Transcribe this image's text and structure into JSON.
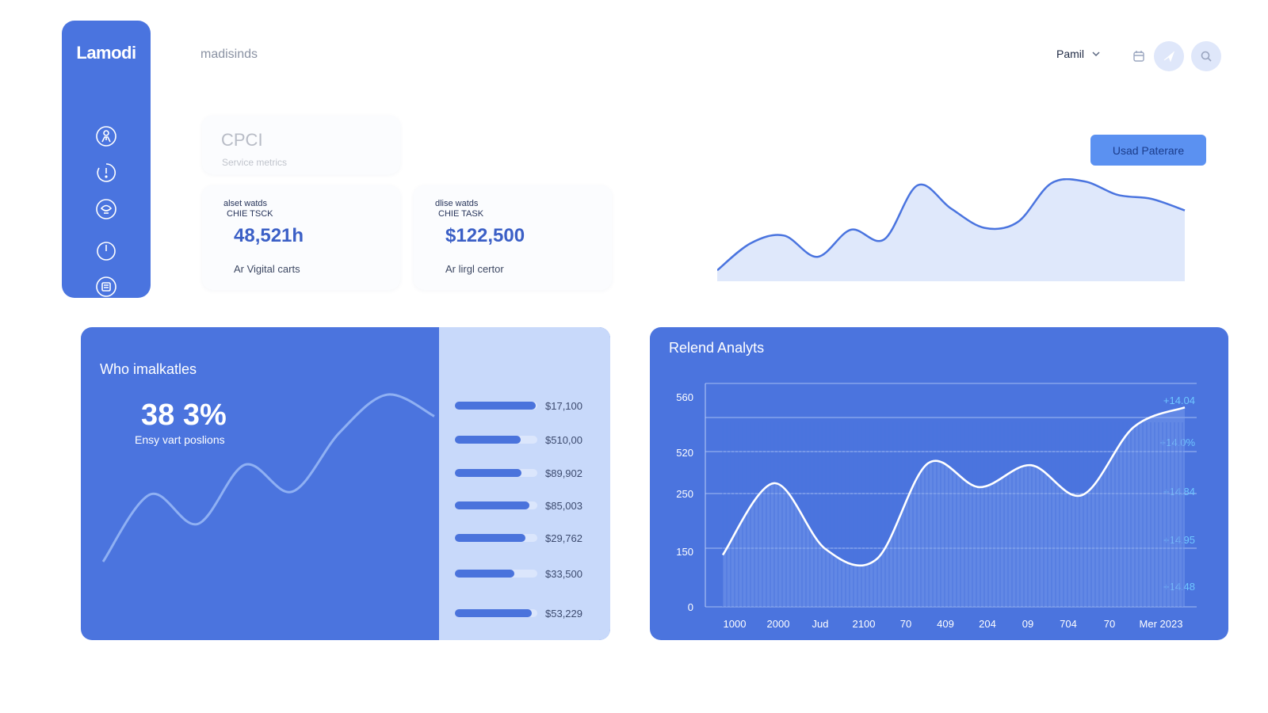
{
  "app": {
    "logo": "Lamodi",
    "breadcrumb": "madisinds"
  },
  "sidebar": {
    "items": [
      {
        "icon": "person-icon"
      },
      {
        "icon": "timer-icon"
      },
      {
        "icon": "chat-icon"
      },
      {
        "icon": "power-icon"
      },
      {
        "icon": "document-icon"
      }
    ]
  },
  "header": {
    "user": "Pamil",
    "icons": [
      "calendar-icon",
      "send-icon",
      "search-icon"
    ]
  },
  "summary": {
    "title": "CPCI",
    "subtitle": "Service metrics"
  },
  "metrics": [
    {
      "line1": "alset watds",
      "line2": "CHIE TSCK",
      "value": "48,521h",
      "footer": "Ar Vigital carts"
    },
    {
      "line1": "dlise watds",
      "line2": "CHIE TASK",
      "value": "$122,500",
      "footer": "Ar lirgl certor"
    }
  ],
  "actions": {
    "primary_label": "Usad Paterare"
  },
  "colors": {
    "accent": "#4a74df",
    "panel": "#4b74de",
    "panel_light": "#c8d9fa",
    "button": "#5b91f1"
  },
  "trend_chart": {
    "type": "area",
    "values": [
      8,
      36,
      44,
      22,
      50,
      40,
      96,
      72,
      52,
      58,
      98,
      100,
      86,
      82,
      70
    ]
  },
  "kpi_panel": {
    "title": "Who imalkatles",
    "value": "38 3%",
    "subtitle": "Ensy vart poslions",
    "curve": [
      10,
      35,
      24,
      46,
      36,
      58,
      72,
      64
    ],
    "bars": [
      {
        "label": "$17,100",
        "fraction": 0.98
      },
      {
        "label": "$510,00",
        "fraction": 0.8
      },
      {
        "label": "$89,902",
        "fraction": 0.81
      },
      {
        "label": "$85,003",
        "fraction": 0.9
      },
      {
        "label": "$29,762",
        "fraction": 0.86
      },
      {
        "label": "$33,500",
        "fraction": 0.72
      },
      {
        "label": "$53,229",
        "fraction": 0.93
      }
    ]
  },
  "chart_data": {
    "type": "area",
    "title": "Relend Analyts",
    "y_ticks": [
      "0",
      "150",
      "250",
      "520",
      "560"
    ],
    "x_ticks": [
      "1000",
      "2000",
      "Jud",
      "2100",
      "70",
      "409",
      "204",
      "09",
      "704",
      "70",
      "Mer 2023"
    ],
    "right_labels": [
      "+14.04",
      "+14.0%",
      "+14.84",
      "+14.95",
      "+14.48"
    ],
    "values": [
      130,
      310,
      145,
      120,
      360,
      300,
      355,
      280,
      450,
      500
    ],
    "ylim": [
      0,
      560
    ],
    "grid": true
  }
}
